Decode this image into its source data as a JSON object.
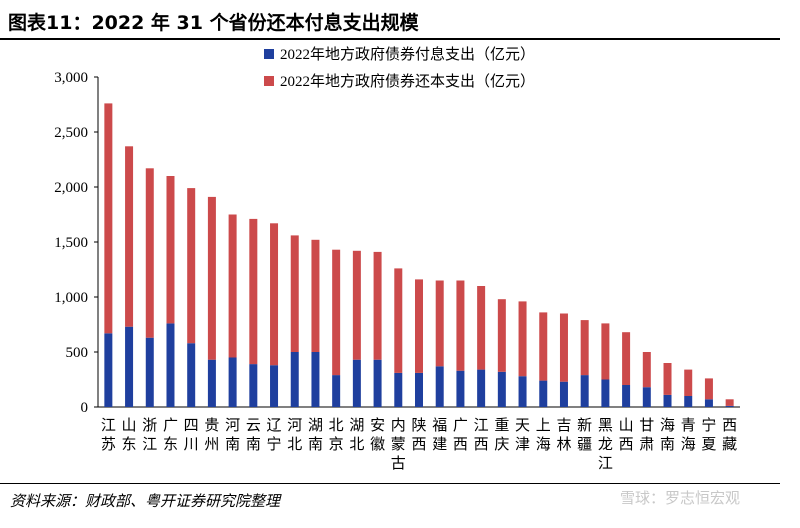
{
  "header": {
    "title": "图表11：2022 年 31 个省份还本付息支出规模"
  },
  "footer": {
    "source": "资料来源：财政部、粤开证券研究院整理",
    "watermark": "雪球：罗志恒宏观"
  },
  "colors": {
    "interest": "#1f3f9e",
    "principal": "#cc4a4b"
  },
  "chart_data": {
    "type": "bar",
    "stacked": true,
    "categories": [
      "江苏",
      "山东",
      "浙江",
      "广东",
      "四川",
      "贵州",
      "河南",
      "云南",
      "辽宁",
      "河北",
      "湖南",
      "北京",
      "湖北",
      "安徽",
      "内蒙古",
      "陕西",
      "福建",
      "广西",
      "江西",
      "重庆",
      "天津",
      "上海",
      "吉林",
      "新疆",
      "黑龙江",
      "山西",
      "甘肃",
      "海南",
      "青海",
      "宁夏",
      "西藏"
    ],
    "series": [
      {
        "name": "2022年地方政府债券付息支出（亿元）",
        "color": "#1f3f9e",
        "values": [
          670,
          730,
          630,
          760,
          580,
          430,
          450,
          390,
          380,
          500,
          500,
          290,
          430,
          430,
          310,
          310,
          370,
          330,
          340,
          320,
          280,
          240,
          230,
          290,
          250,
          200,
          180,
          110,
          100,
          70,
          10
        ]
      },
      {
        "name": "2022年地方政府债券还本支出（亿元）",
        "color": "#cc4a4b",
        "values": [
          2090,
          1640,
          1540,
          1340,
          1410,
          1480,
          1300,
          1320,
          1290,
          1060,
          1020,
          1140,
          990,
          980,
          950,
          850,
          780,
          820,
          760,
          660,
          680,
          620,
          620,
          500,
          510,
          480,
          320,
          290,
          240,
          190,
          60
        ]
      }
    ],
    "yticks": [
      "0",
      "500",
      "1,000",
      "1,500",
      "2,000",
      "2,500",
      "3,000"
    ],
    "ylim": [
      0,
      3000
    ],
    "grid": false,
    "legend_position": "top-left"
  }
}
